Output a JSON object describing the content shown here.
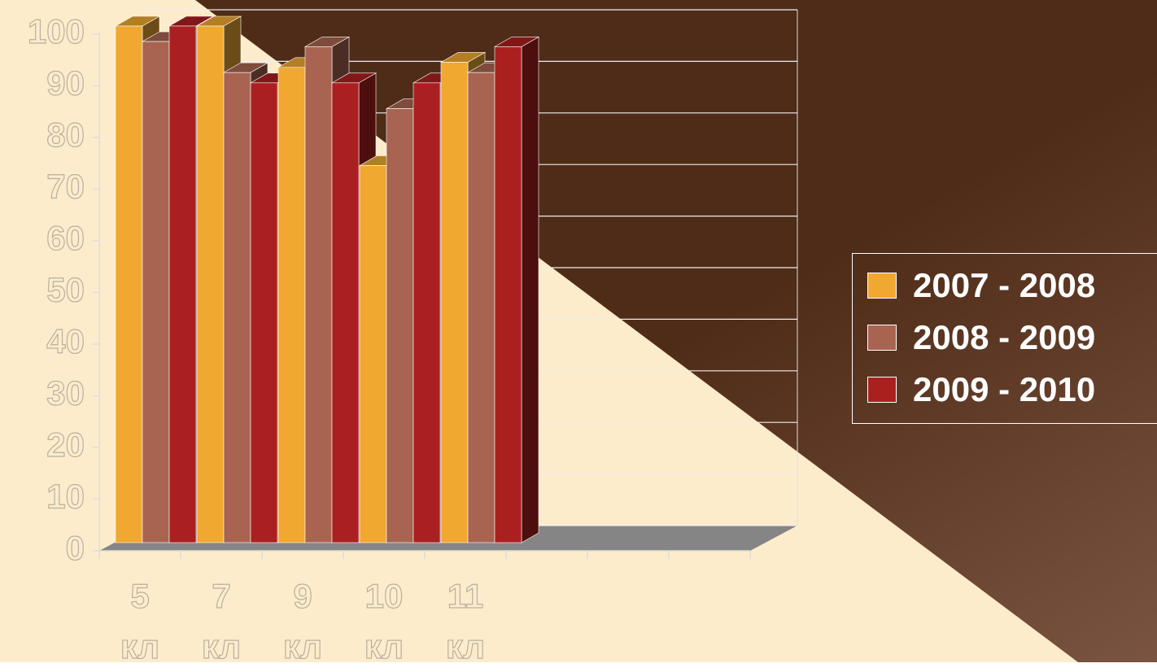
{
  "chart_data": {
    "type": "bar3d",
    "categories": [
      "5 кл",
      "7 кл",
      "9 кл",
      "10 кл",
      "11 кл",
      null,
      null,
      null
    ],
    "series": [
      {
        "name": "2007 - 2008",
        "color": "#f0a830",
        "values": [
          100,
          100,
          92,
          73,
          93,
          null,
          null,
          null
        ]
      },
      {
        "name": "2008 - 2009",
        "color": "#a86450",
        "values": [
          97,
          91,
          96,
          84,
          91,
          null,
          null,
          null
        ]
      },
      {
        "name": "2009 - 2010",
        "color": "#aa2020",
        "values": [
          100,
          89,
          89,
          89,
          96,
          null,
          null,
          null
        ]
      }
    ],
    "ylim": [
      0,
      100
    ],
    "yticks": [
      0,
      10,
      20,
      30,
      40,
      50,
      60,
      70,
      80,
      90,
      100
    ],
    "grid": true,
    "legend": "right"
  }
}
